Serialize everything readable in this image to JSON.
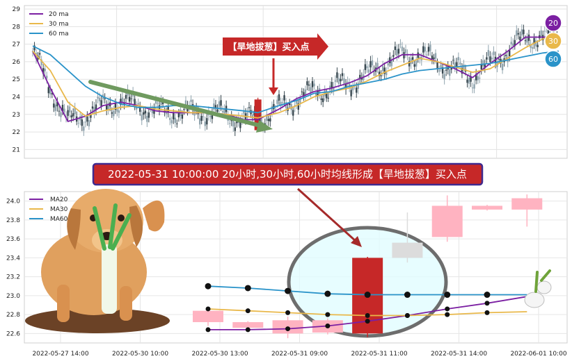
{
  "colors": {
    "ma20": "#7b1fa2",
    "ma30": "#e9b84a",
    "ma60": "#2a93c9",
    "up": "#c62828",
    "down": "#37474f",
    "lower_up": "#ffb3c1",
    "lower_down": "#b9f6b9",
    "banner_bg": "#c62828",
    "banner_border": "#3f2a8f",
    "arrow_green": "#6f9a5f",
    "ellipse": "#6d6d6d",
    "ellipse_fill": "#dffcff"
  },
  "annotations": {
    "upper_callout": "【旱地拔葱】买入点",
    "banner": "2022-05-31 10:00:00 20小时,30小时,60小时均线形成【旱地拔葱】买入点",
    "badges": [
      "20",
      "30",
      "60"
    ]
  },
  "icons": [
    "dog-illustration",
    "scallion-icon",
    "down-arrow-icon",
    "callout-arrow-icon"
  ],
  "chart_data": [
    {
      "type": "line",
      "title": "",
      "legend": [
        "20 ma",
        "30 ma",
        "60 ma"
      ],
      "legend_position": "top-left",
      "grid": true,
      "ylim": [
        20.5,
        29.2
      ],
      "y_ticks": [
        21,
        22,
        23,
        24,
        25,
        26,
        27,
        28,
        29
      ],
      "x_tick_labels": [],
      "n_bars": 300,
      "signal_index": 128,
      "series": [
        {
          "name": "20 ma",
          "x": [
            0,
            10,
            20,
            30,
            40,
            50,
            60,
            70,
            80,
            90,
            100,
            110,
            120,
            128,
            140,
            150,
            160,
            170,
            180,
            190,
            200,
            210,
            220,
            230,
            240,
            250,
            260,
            270,
            280,
            290,
            299
          ],
          "values": [
            26.6,
            24.5,
            22.6,
            22.9,
            23.5,
            23.7,
            23.5,
            23.2,
            23.1,
            23.1,
            23.1,
            23.0,
            22.7,
            22.7,
            23.3,
            23.9,
            24.3,
            24.5,
            24.8,
            25.2,
            25.9,
            26.4,
            26.4,
            26.0,
            25.6,
            25.1,
            25.9,
            26.6,
            27.4,
            27.4,
            27.4
          ]
        },
        {
          "name": "30 ma",
          "x": [
            0,
            10,
            20,
            30,
            40,
            50,
            60,
            70,
            80,
            90,
            100,
            110,
            120,
            128,
            140,
            150,
            160,
            170,
            180,
            190,
            200,
            210,
            220,
            230,
            240,
            250,
            260,
            270,
            280,
            290,
            299
          ],
          "values": [
            26.6,
            25.5,
            23.7,
            22.9,
            23.2,
            23.4,
            23.5,
            23.3,
            23.2,
            23.1,
            23.1,
            23.0,
            22.9,
            22.8,
            23.1,
            23.5,
            24.0,
            24.3,
            24.5,
            24.9,
            25.4,
            25.8,
            26.2,
            26.0,
            25.7,
            25.4,
            25.6,
            26.2,
            26.8,
            27.3,
            27.5
          ]
        },
        {
          "name": "60 ma",
          "x": [
            0,
            10,
            20,
            30,
            40,
            50,
            60,
            70,
            80,
            90,
            100,
            110,
            120,
            128,
            140,
            150,
            160,
            170,
            180,
            190,
            200,
            210,
            220,
            230,
            240,
            250,
            260,
            270,
            280,
            290,
            299
          ],
          "values": [
            26.9,
            26.4,
            25.5,
            24.6,
            24.0,
            23.6,
            23.4,
            23.4,
            23.5,
            23.5,
            23.4,
            23.3,
            23.2,
            23.1,
            23.5,
            23.8,
            24.2,
            24.3,
            24.6,
            24.8,
            25.0,
            25.3,
            25.5,
            25.6,
            25.7,
            25.8,
            25.9,
            26.1,
            26.3,
            26.5,
            26.6
          ]
        }
      ]
    },
    {
      "type": "candlestick",
      "title": "",
      "legend": [
        "MA20",
        "MA30",
        "MA60"
      ],
      "legend_position": "top-left",
      "grid": true,
      "ylim": [
        22.5,
        24.1
      ],
      "y_ticks": [
        22.6,
        22.8,
        23.0,
        23.2,
        23.4,
        23.6,
        23.8,
        24.0
      ],
      "x_tick_labels": [
        "2022-05-27 14:00",
        "2022-05-30 10:00",
        "2022-05-30 13:00",
        "2022-05-31 09:00",
        "2022-05-31 11:00",
        "2022-05-31 14:00",
        "2022-06-01 10:00"
      ],
      "candles": [
        {
          "o": 22.72,
          "h": 22.85,
          "l": 22.68,
          "c": 22.84
        },
        {
          "o": 22.66,
          "h": 22.73,
          "l": 22.62,
          "c": 22.72
        },
        {
          "o": 22.6,
          "h": 22.78,
          "l": 22.55,
          "c": 22.74
        },
        {
          "o": 22.61,
          "h": 22.76,
          "l": 22.59,
          "c": 22.74
        },
        {
          "o": 22.6,
          "h": 23.41,
          "l": 22.56,
          "c": 23.4
        },
        {
          "o": 23.4,
          "h": 23.88,
          "l": 23.35,
          "c": 23.56
        },
        {
          "o": 23.62,
          "h": 24.06,
          "l": 23.57,
          "c": 23.95
        },
        {
          "o": 23.91,
          "h": 23.96,
          "l": 23.9,
          "c": 23.95
        },
        {
          "o": 23.91,
          "h": 24.07,
          "l": 23.73,
          "c": 24.03
        }
      ],
      "series": [
        {
          "name": "MA20",
          "values": [
            22.64,
            22.64,
            22.65,
            22.68,
            22.73,
            22.79,
            22.86,
            22.92,
            22.99
          ]
        },
        {
          "name": "MA30",
          "values": [
            22.86,
            22.84,
            22.82,
            22.8,
            22.79,
            22.79,
            22.8,
            22.82,
            22.83
          ]
        },
        {
          "name": "MA60",
          "values": [
            23.1,
            23.08,
            23.05,
            23.02,
            23.01,
            23.01,
            23.01,
            23.01,
            23.01
          ]
        }
      ]
    }
  ]
}
